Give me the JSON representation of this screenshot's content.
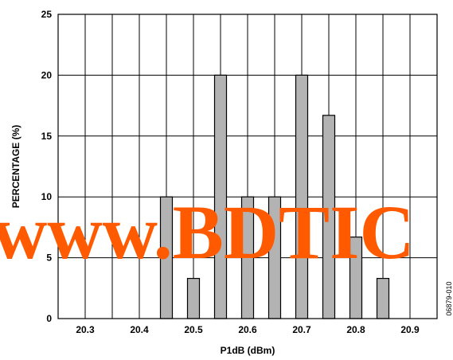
{
  "chart_data": {
    "type": "bar",
    "xlabel": "P1dB (dBm)",
    "ylabel": "PERCENTAGE (%)",
    "xlim": [
      20.25,
      20.95
    ],
    "ylim": [
      0,
      25
    ],
    "grid": true,
    "x_ticks": [
      "20.3",
      "20.4",
      "20.5",
      "20.6",
      "20.7",
      "20.8",
      "20.9"
    ],
    "y_ticks": [
      "0",
      "5",
      "10",
      "15",
      "20",
      "25"
    ],
    "x": [
      20.45,
      20.5,
      20.55,
      20.6,
      20.65,
      20.7,
      20.75,
      20.8,
      20.85
    ],
    "values": [
      10.0,
      3.3,
      20.0,
      10.0,
      10.0,
      20.0,
      16.7,
      6.7,
      3.3
    ],
    "bar_color": "#b3b3b3",
    "bar_edge_color": "#000000"
  },
  "figure_id": "06879-010",
  "watermark": {
    "text": "www.BDTIC",
    "color": "#ff5a00"
  }
}
